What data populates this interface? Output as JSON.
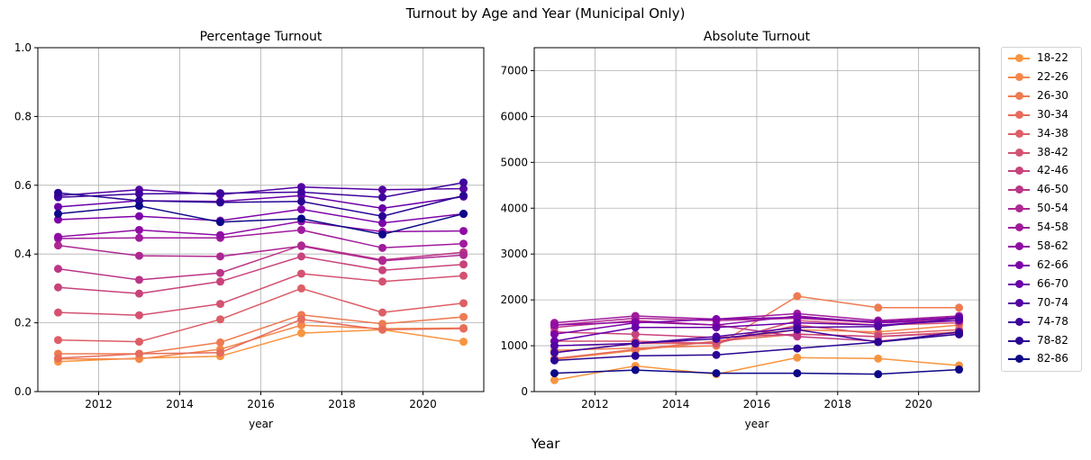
{
  "figure": {
    "suptitle": "Turnout by Age and Year (Municipal Only)",
    "supxlabel": "Year"
  },
  "chart_data": [
    {
      "type": "line",
      "title": "Percentage Turnout",
      "xlabel": "year",
      "ylabel": "",
      "xlim": [
        2010.5,
        2021.5
      ],
      "ylim": [
        0,
        1.0
      ],
      "xticks": [
        2012,
        2014,
        2016,
        2018,
        2020
      ],
      "yticks": [
        0.0,
        0.2,
        0.4,
        0.6,
        0.8,
        1.0
      ],
      "ytick_labels": [
        "0.0",
        "0.2",
        "0.4",
        "0.6",
        "0.8",
        "1.0"
      ],
      "grid": true,
      "x": [
        2011,
        2013,
        2015,
        2017,
        2019,
        2021
      ],
      "series": [
        {
          "name": "18-22",
          "color": "#f89540",
          "values": [
            0.087,
            0.097,
            0.103,
            0.17,
            0.18,
            0.145
          ]
        },
        {
          "name": "22-26",
          "color": "#f48849",
          "values": [
            0.095,
            0.095,
            0.123,
            0.193,
            0.183,
            0.185
          ]
        },
        {
          "name": "26-30",
          "color": "#ee7b51",
          "values": [
            0.11,
            0.11,
            0.143,
            0.223,
            0.197,
            0.217
          ]
        },
        {
          "name": "30-34",
          "color": "#e66c5c",
          "values": [
            0.097,
            0.11,
            0.113,
            0.21,
            0.18,
            0.183
          ]
        },
        {
          "name": "34-38",
          "color": "#dd5e66",
          "values": [
            0.15,
            0.145,
            0.21,
            0.3,
            0.23,
            0.257
          ]
        },
        {
          "name": "38-42",
          "color": "#d45270",
          "values": [
            0.23,
            0.222,
            0.255,
            0.343,
            0.32,
            0.337
          ]
        },
        {
          "name": "42-46",
          "color": "#c8437b",
          "values": [
            0.303,
            0.285,
            0.32,
            0.393,
            0.353,
            0.37
          ]
        },
        {
          "name": "46-50",
          "color": "#bc3587",
          "values": [
            0.357,
            0.325,
            0.345,
            0.425,
            0.383,
            0.405
          ]
        },
        {
          "name": "50-54",
          "color": "#ae2892",
          "values": [
            0.425,
            0.395,
            0.393,
            0.423,
            0.38,
            0.397
          ]
        },
        {
          "name": "54-58",
          "color": "#a01a9c",
          "values": [
            0.445,
            0.447,
            0.447,
            0.47,
            0.418,
            0.43
          ]
        },
        {
          "name": "58-62",
          "color": "#900da4",
          "values": [
            0.45,
            0.47,
            0.455,
            0.495,
            0.465,
            0.467
          ]
        },
        {
          "name": "62-66",
          "color": "#7e03a8",
          "values": [
            0.5,
            0.51,
            0.497,
            0.53,
            0.49,
            0.517
          ]
        },
        {
          "name": "66-70",
          "color": "#6a00a8",
          "values": [
            0.537,
            0.555,
            0.553,
            0.57,
            0.533,
            0.567
          ]
        },
        {
          "name": "70-74",
          "color": "#5302a3",
          "values": [
            0.57,
            0.587,
            0.573,
            0.595,
            0.587,
            0.59
          ]
        },
        {
          "name": "74-78",
          "color": "#3e049c",
          "values": [
            0.565,
            0.575,
            0.577,
            0.58,
            0.565,
            0.608
          ]
        },
        {
          "name": "78-82",
          "color": "#2a0593",
          "values": [
            0.578,
            0.555,
            0.55,
            0.553,
            0.51,
            0.57
          ]
        },
        {
          "name": "82-86",
          "color": "#0d0887",
          "values": [
            0.517,
            0.54,
            0.493,
            0.503,
            0.457,
            0.517
          ]
        }
      ]
    },
    {
      "type": "line",
      "title": "Absolute Turnout",
      "xlabel": "year",
      "ylabel": "",
      "xlim": [
        2010.5,
        2021.5
      ],
      "ylim": [
        0,
        7500
      ],
      "xticks": [
        2012,
        2014,
        2016,
        2018,
        2020
      ],
      "yticks": [
        0,
        1000,
        2000,
        3000,
        4000,
        5000,
        6000,
        7000
      ],
      "ytick_labels": [
        "0",
        "1000",
        "2000",
        "3000",
        "4000",
        "5000",
        "6000",
        "7000"
      ],
      "grid": true,
      "x": [
        2011,
        2013,
        2015,
        2017,
        2019,
        2021
      ],
      "series": [
        {
          "name": "18-22",
          "color": "#f89540",
          "values": [
            250,
            560,
            380,
            740,
            720,
            570
          ]
        },
        {
          "name": "22-26",
          "color": "#f48849",
          "values": [
            700,
            900,
            1100,
            1350,
            1300,
            1450
          ]
        },
        {
          "name": "26-30",
          "color": "#ee7b51",
          "values": [
            900,
            950,
            1000,
            2080,
            1830,
            1830
          ]
        },
        {
          "name": "30-34",
          "color": "#e66c5c",
          "values": [
            720,
            920,
            1100,
            1250,
            1200,
            1300
          ]
        },
        {
          "name": "34-38",
          "color": "#dd5e66",
          "values": [
            850,
            1050,
            1050,
            1450,
            1250,
            1350
          ]
        },
        {
          "name": "38-42",
          "color": "#d45270",
          "values": [
            1100,
            1100,
            1050,
            1550,
            1450,
            1500
          ]
        },
        {
          "name": "42-46",
          "color": "#c8437b",
          "values": [
            1300,
            1250,
            1180,
            1250,
            1200,
            1280
          ]
        },
        {
          "name": "46-50",
          "color": "#bc3587",
          "values": [
            1400,
            1550,
            1450,
            1200,
            1100,
            1250
          ]
        },
        {
          "name": "50-54",
          "color": "#ae2892",
          "values": [
            1450,
            1600,
            1550,
            1600,
            1500,
            1600
          ]
        },
        {
          "name": "54-58",
          "color": "#a01a9c",
          "values": [
            1500,
            1650,
            1580,
            1700,
            1550,
            1650
          ]
        },
        {
          "name": "58-62",
          "color": "#900da4",
          "values": [
            1450,
            1520,
            1450,
            1650,
            1500,
            1550
          ]
        },
        {
          "name": "62-66",
          "color": "#7e03a8",
          "values": [
            1250,
            1500,
            1580,
            1620,
            1520,
            1620
          ]
        },
        {
          "name": "66-70",
          "color": "#6a00a8",
          "values": [
            1100,
            1400,
            1400,
            1500,
            1450,
            1550
          ]
        },
        {
          "name": "70-74",
          "color": "#5302a3",
          "values": [
            1000,
            1050,
            1200,
            1400,
            1420,
            1600
          ]
        },
        {
          "name": "74-78",
          "color": "#3e049c",
          "values": [
            850,
            1050,
            1150,
            1350,
            1080,
            1300
          ]
        },
        {
          "name": "78-82",
          "color": "#2a0593",
          "values": [
            680,
            780,
            800,
            940,
            1080,
            1250
          ]
        },
        {
          "name": "82-86",
          "color": "#0d0887",
          "values": [
            400,
            470,
            400,
            400,
            380,
            480
          ]
        }
      ]
    }
  ]
}
